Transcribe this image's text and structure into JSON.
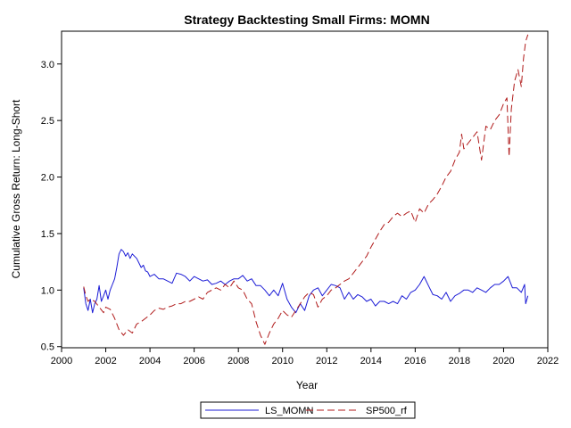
{
  "chart_data": {
    "type": "line",
    "title": "Strategy Backtesting Small Firms: MOMN",
    "xlabel": "Year",
    "ylabel": "Cumulative Gross Return: Long-Short",
    "xlim": [
      2000,
      2022
    ],
    "ylim": [
      0.49,
      3.29
    ],
    "xticks": [
      2000,
      2002,
      2004,
      2006,
      2008,
      2010,
      2012,
      2014,
      2016,
      2018,
      2020,
      2022
    ],
    "xtick_labels": [
      "2000",
      "2002",
      "2004",
      "2006",
      "2008",
      "2010",
      "2012",
      "2014",
      "2016",
      "2018",
      "2020",
      "2022"
    ],
    "yticks": [
      0.5,
      1.0,
      1.5,
      2.0,
      2.5,
      3.0
    ],
    "ytick_labels": [
      "0.5",
      "1.0",
      "1.5",
      "2.0",
      "2.5",
      "3.0"
    ],
    "grid": false,
    "legend_position": "bottom-center",
    "series": [
      {
        "name": "LS_MOMN",
        "color": "#1c1cd6",
        "dash": "solid",
        "x": [
          2001.0,
          2001.1,
          2001.2,
          2001.3,
          2001.4,
          2001.5,
          2001.6,
          2001.7,
          2001.8,
          2001.9,
          2002.0,
          2002.1,
          2002.2,
          2002.3,
          2002.4,
          2002.5,
          2002.6,
          2002.7,
          2002.8,
          2002.9,
          2003.0,
          2003.1,
          2003.2,
          2003.3,
          2003.4,
          2003.5,
          2003.6,
          2003.7,
          2003.8,
          2003.9,
          2004.0,
          2004.2,
          2004.4,
          2004.6,
          2004.8,
          2005.0,
          2005.2,
          2005.4,
          2005.6,
          2005.8,
          2006.0,
          2006.2,
          2006.4,
          2006.6,
          2006.8,
          2007.0,
          2007.2,
          2007.4,
          2007.6,
          2007.8,
          2008.0,
          2008.2,
          2008.4,
          2008.6,
          2008.8,
          2009.0,
          2009.2,
          2009.4,
          2009.6,
          2009.8,
          2010.0,
          2010.2,
          2010.4,
          2010.6,
          2010.8,
          2011.0,
          2011.2,
          2011.4,
          2011.6,
          2011.8,
          2012.0,
          2012.2,
          2012.4,
          2012.6,
          2012.8,
          2013.0,
          2013.2,
          2013.4,
          2013.6,
          2013.8,
          2014.0,
          2014.2,
          2014.4,
          2014.6,
          2014.8,
          2015.0,
          2015.2,
          2015.4,
          2015.6,
          2015.8,
          2016.0,
          2016.2,
          2016.4,
          2016.6,
          2016.8,
          2017.0,
          2017.2,
          2017.4,
          2017.6,
          2017.8,
          2018.0,
          2018.2,
          2018.4,
          2018.6,
          2018.8,
          2019.0,
          2019.2,
          2019.4,
          2019.6,
          2019.8,
          2020.0,
          2020.2,
          2020.4,
          2020.6,
          2020.8,
          2020.95,
          2021.0,
          2021.1
        ],
        "y": [
          1.02,
          0.88,
          0.82,
          0.92,
          0.8,
          0.88,
          0.92,
          1.04,
          0.9,
          0.95,
          1.0,
          0.92,
          1.0,
          1.05,
          1.1,
          1.2,
          1.32,
          1.36,
          1.34,
          1.3,
          1.33,
          1.28,
          1.32,
          1.3,
          1.28,
          1.24,
          1.2,
          1.22,
          1.17,
          1.16,
          1.12,
          1.14,
          1.1,
          1.1,
          1.08,
          1.06,
          1.15,
          1.14,
          1.12,
          1.08,
          1.12,
          1.1,
          1.08,
          1.09,
          1.05,
          1.06,
          1.08,
          1.05,
          1.08,
          1.1,
          1.1,
          1.13,
          1.08,
          1.1,
          1.04,
          1.04,
          1.0,
          0.95,
          1.0,
          0.95,
          1.06,
          0.92,
          0.85,
          0.8,
          0.88,
          0.82,
          0.95,
          1.0,
          1.02,
          0.95,
          1.0,
          1.05,
          1.04,
          1.02,
          0.92,
          0.98,
          0.92,
          0.96,
          0.94,
          0.9,
          0.92,
          0.86,
          0.9,
          0.9,
          0.88,
          0.9,
          0.88,
          0.95,
          0.92,
          0.98,
          1.0,
          1.05,
          1.12,
          1.04,
          0.96,
          0.95,
          0.92,
          0.98,
          0.9,
          0.95,
          0.97,
          1.0,
          1.0,
          0.98,
          1.02,
          1.0,
          0.98,
          1.02,
          1.05,
          1.05,
          1.08,
          1.12,
          1.02,
          1.02,
          0.98,
          1.05,
          0.88,
          0.95
        ]
      },
      {
        "name": "SP500_rf",
        "color": "#b01b1b",
        "dash": "dashed",
        "x": [
          2001.0,
          2001.1,
          2001.2,
          2001.3,
          2001.5,
          2001.7,
          2001.9,
          2002.0,
          2002.2,
          2002.4,
          2002.6,
          2002.8,
          2003.0,
          2003.2,
          2003.4,
          2003.6,
          2003.8,
          2004.0,
          2004.2,
          2004.4,
          2004.6,
          2004.8,
          2005.0,
          2005.2,
          2005.4,
          2005.6,
          2005.8,
          2006.0,
          2006.2,
          2006.4,
          2006.6,
          2006.8,
          2007.0,
          2007.2,
          2007.4,
          2007.6,
          2007.8,
          2008.0,
          2008.2,
          2008.4,
          2008.6,
          2008.8,
          2009.0,
          2009.2,
          2009.4,
          2009.6,
          2009.8,
          2010.0,
          2010.2,
          2010.4,
          2010.6,
          2010.8,
          2011.0,
          2011.2,
          2011.4,
          2011.6,
          2011.8,
          2012.0,
          2012.2,
          2012.4,
          2012.6,
          2012.8,
          2013.0,
          2013.2,
          2013.4,
          2013.6,
          2013.8,
          2014.0,
          2014.2,
          2014.4,
          2014.6,
          2014.8,
          2015.0,
          2015.2,
          2015.4,
          2015.6,
          2015.8,
          2016.0,
          2016.2,
          2016.4,
          2016.6,
          2016.8,
          2017.0,
          2017.2,
          2017.4,
          2017.6,
          2017.8,
          2018.0,
          2018.1,
          2018.2,
          2018.4,
          2018.6,
          2018.8,
          2019.0,
          2019.2,
          2019.4,
          2019.6,
          2019.8,
          2020.0,
          2020.15,
          2020.25,
          2020.35,
          2020.5,
          2020.65,
          2020.8,
          2020.9,
          2021.0,
          2021.1
        ],
        "y": [
          1.03,
          0.95,
          0.9,
          0.92,
          0.9,
          0.85,
          0.8,
          0.85,
          0.83,
          0.75,
          0.65,
          0.6,
          0.65,
          0.62,
          0.7,
          0.72,
          0.75,
          0.78,
          0.82,
          0.84,
          0.83,
          0.85,
          0.86,
          0.88,
          0.88,
          0.9,
          0.9,
          0.92,
          0.94,
          0.92,
          0.98,
          1.0,
          1.02,
          1.0,
          1.05,
          1.02,
          1.08,
          1.02,
          1.0,
          0.92,
          0.88,
          0.72,
          0.6,
          0.52,
          0.62,
          0.7,
          0.75,
          0.82,
          0.78,
          0.76,
          0.82,
          0.88,
          0.94,
          0.98,
          0.96,
          0.85,
          0.92,
          0.95,
          1.0,
          1.02,
          1.05,
          1.08,
          1.1,
          1.15,
          1.2,
          1.25,
          1.3,
          1.38,
          1.45,
          1.52,
          1.58,
          1.6,
          1.65,
          1.68,
          1.65,
          1.68,
          1.7,
          1.6,
          1.72,
          1.68,
          1.76,
          1.8,
          1.85,
          1.92,
          2.0,
          2.05,
          2.15,
          2.22,
          2.38,
          2.25,
          2.3,
          2.35,
          2.4,
          2.15,
          2.45,
          2.42,
          2.5,
          2.55,
          2.65,
          2.7,
          2.18,
          2.6,
          2.85,
          2.95,
          2.8,
          3.05,
          3.2,
          3.26
        ]
      }
    ]
  }
}
